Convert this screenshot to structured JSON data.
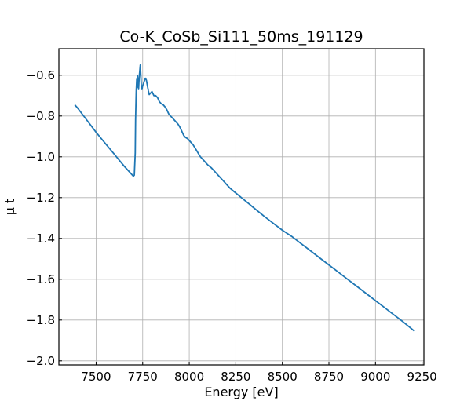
{
  "chart_data": {
    "type": "line",
    "title": "Co-K_CoSb_Si111_50ms_191129",
    "xlabel": "Energy [eV]",
    "ylabel": "μ t",
    "xlim": [
      7300,
      9260
    ],
    "ylim": [
      -2.02,
      -0.47
    ],
    "xticks": [
      7500,
      7750,
      8000,
      8250,
      8500,
      8750,
      9000,
      9250
    ],
    "yticks": [
      -0.6,
      -0.8,
      -1.0,
      -1.2,
      -1.4,
      -1.6,
      -1.8,
      -2.0
    ],
    "xtick_labels": [
      "7500",
      "7750",
      "8000",
      "8250",
      "8500",
      "8750",
      "9000",
      "9250"
    ],
    "ytick_labels": [
      "−0.6",
      "−0.8",
      "−1.0",
      "−1.2",
      "−1.4",
      "−1.6",
      "−1.8",
      "−2.0"
    ],
    "grid": true,
    "series": [
      {
        "color": "#1f77b4",
        "x": [
          7385,
          7400,
          7450,
          7500,
          7550,
          7600,
          7650,
          7690,
          7700,
          7705,
          7710,
          7712,
          7715,
          7718,
          7720,
          7722,
          7725,
          7728,
          7731,
          7734,
          7737,
          7740,
          7743,
          7746,
          7750,
          7755,
          7760,
          7765,
          7770,
          7775,
          7780,
          7785,
          7790,
          7800,
          7810,
          7820,
          7830,
          7840,
          7850,
          7860,
          7870,
          7880,
          7890,
          7900,
          7910,
          7920,
          7930,
          7940,
          7950,
          7960,
          7970,
          7980,
          7990,
          8000,
          8010,
          8020,
          8030,
          8040,
          8050,
          8060,
          8070,
          8080,
          8090,
          8100,
          8120,
          8140,
          8160,
          8180,
          8200,
          8220,
          8240,
          8260,
          8280,
          8300,
          8320,
          8340,
          8360,
          8400,
          8450,
          8500,
          8550,
          8600,
          8650,
          8700,
          8750,
          8800,
          8850,
          8900,
          8950,
          9000,
          9050,
          9100,
          9150,
          9210
        ],
        "y": [
          -0.745,
          -0.76,
          -0.82,
          -0.88,
          -0.935,
          -0.99,
          -1.045,
          -1.085,
          -1.095,
          -1.09,
          -0.98,
          -0.82,
          -0.68,
          -0.62,
          -0.66,
          -0.6,
          -0.63,
          -0.67,
          -0.61,
          -0.58,
          -0.55,
          -0.6,
          -0.66,
          -0.67,
          -0.65,
          -0.64,
          -0.625,
          -0.615,
          -0.625,
          -0.65,
          -0.675,
          -0.695,
          -0.69,
          -0.68,
          -0.7,
          -0.7,
          -0.71,
          -0.73,
          -0.74,
          -0.745,
          -0.755,
          -0.77,
          -0.79,
          -0.8,
          -0.81,
          -0.82,
          -0.83,
          -0.84,
          -0.855,
          -0.875,
          -0.895,
          -0.905,
          -0.91,
          -0.92,
          -0.93,
          -0.94,
          -0.955,
          -0.97,
          -0.985,
          -1.0,
          -1.01,
          -1.02,
          -1.03,
          -1.04,
          -1.055,
          -1.075,
          -1.095,
          -1.115,
          -1.135,
          -1.155,
          -1.17,
          -1.185,
          -1.2,
          -1.215,
          -1.23,
          -1.245,
          -1.26,
          -1.29,
          -1.325,
          -1.36,
          -1.39,
          -1.425,
          -1.46,
          -1.495,
          -1.53,
          -1.565,
          -1.6,
          -1.635,
          -1.67,
          -1.705,
          -1.74,
          -1.775,
          -1.81,
          -1.855
        ]
      }
    ]
  }
}
